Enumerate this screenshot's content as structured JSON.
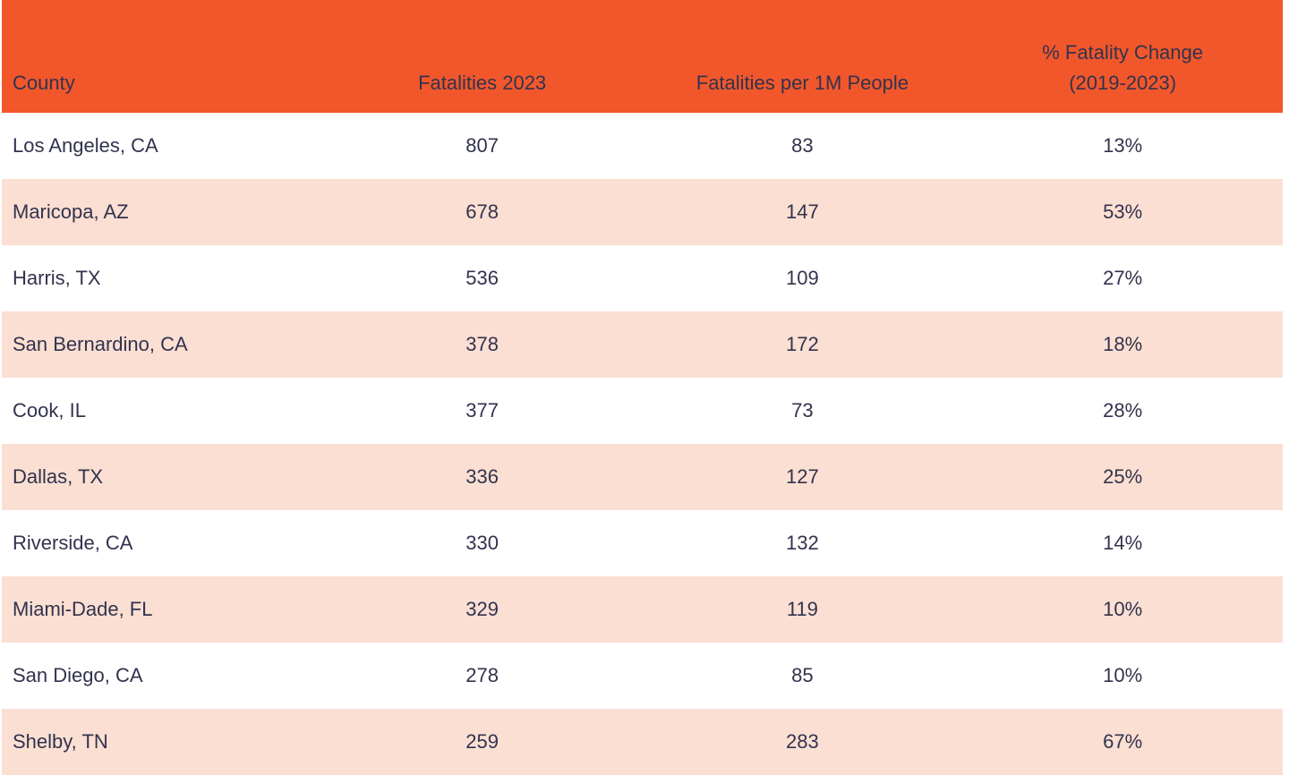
{
  "colors": {
    "header_bg": "#F1572B",
    "row_bg": "#FFFFFF",
    "row_alt_bg": "#FBDFD3",
    "text": "#32334D"
  },
  "header": {
    "county": "County",
    "fatalities_2023": "Fatalities 2023",
    "per_1m": "Fatalities per 1M People",
    "pct_change_line1": "% Fatality Change",
    "pct_change_line2": "(2019-2023)"
  },
  "chart_data": {
    "type": "table",
    "title": "",
    "columns": [
      "County",
      "Fatalities 2023",
      "Fatalities per 1M People",
      "% Fatality Change (2019-2023)"
    ],
    "rows": [
      [
        "Los Angeles, CA",
        807,
        83,
        "13%"
      ],
      [
        "Maricopa, AZ",
        678,
        147,
        "53%"
      ],
      [
        "Harris, TX",
        536,
        109,
        "27%"
      ],
      [
        "San Bernardino, CA",
        378,
        172,
        "18%"
      ],
      [
        "Cook, IL",
        377,
        73,
        "28%"
      ],
      [
        "Dallas, TX",
        336,
        127,
        "25%"
      ],
      [
        "Riverside, CA",
        330,
        132,
        "14%"
      ],
      [
        "Miami-Dade, FL",
        329,
        119,
        "10%"
      ],
      [
        "San Diego, CA",
        278,
        85,
        "10%"
      ],
      [
        "Shelby, TN",
        259,
        283,
        "67%"
      ]
    ],
    "layout": {
      "striped": true,
      "header_position": "top",
      "first_column_align": "left",
      "other_columns_align": "center"
    }
  }
}
